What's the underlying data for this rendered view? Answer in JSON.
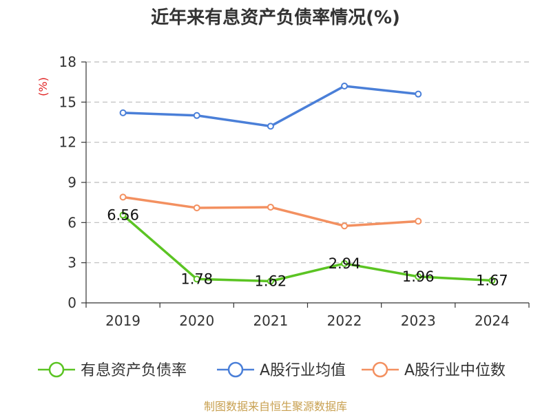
{
  "chart_data": {
    "type": "line",
    "title": "近年来有息资产负债率情况(%)",
    "ylabel": "(%)",
    "xlabel": "",
    "categories": [
      "2019",
      "2020",
      "2021",
      "2022",
      "2023",
      "2024"
    ],
    "ylim": [
      0,
      18
    ],
    "yticks": [
      0,
      3,
      6,
      9,
      12,
      15,
      18
    ],
    "grid": true,
    "legend_position": "bottom",
    "series": [
      {
        "name": "有息资产负债率",
        "color": "#5bc423",
        "values": [
          6.56,
          1.78,
          1.62,
          2.94,
          1.96,
          1.67
        ],
        "labels": [
          "6.56",
          "1.78",
          "1.62",
          "2.94",
          "1.96",
          "1.67"
        ]
      },
      {
        "name": "A股行业均值",
        "color": "#4a7fd8",
        "values": [
          14.2,
          14.0,
          13.2,
          16.2,
          15.6,
          null
        ]
      },
      {
        "name": "A股行业中位数",
        "color": "#f39060",
        "values": [
          7.9,
          7.1,
          7.15,
          5.75,
          6.1,
          null
        ]
      }
    ],
    "source": "制图数据来自恒生聚源数据库"
  }
}
